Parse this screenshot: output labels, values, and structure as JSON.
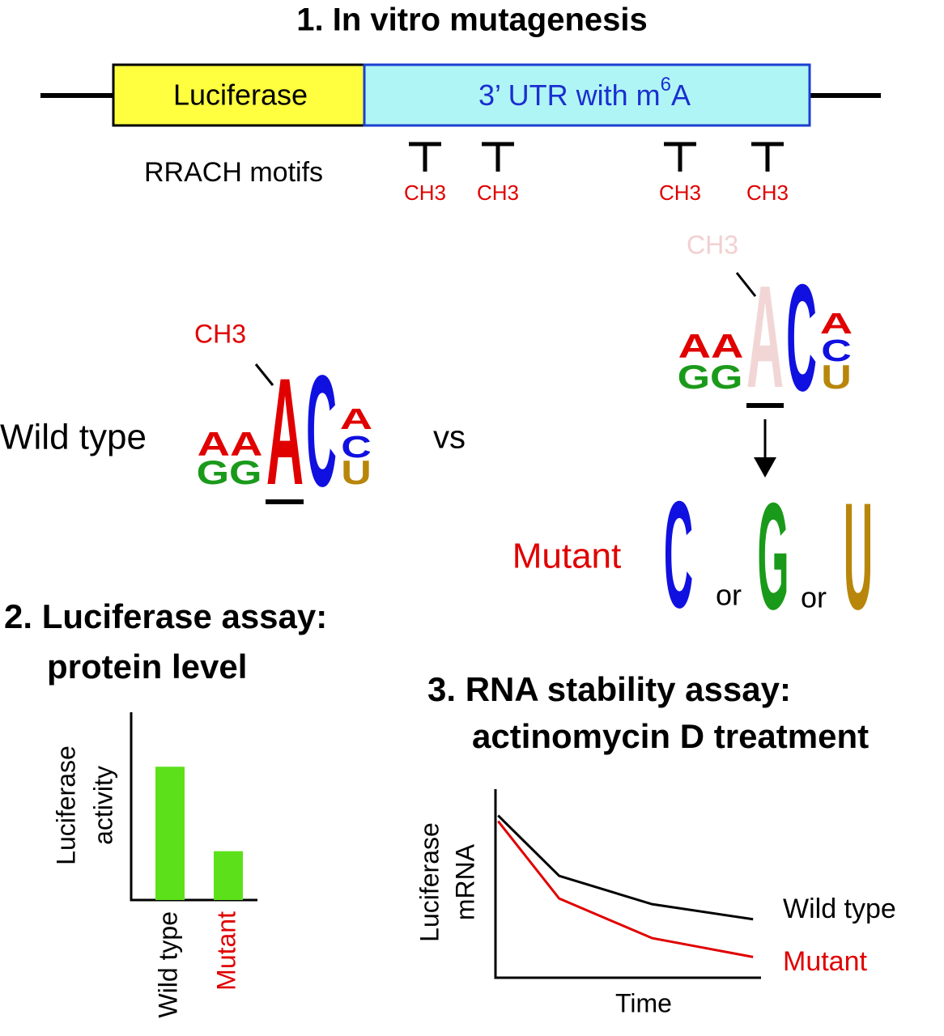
{
  "section1": {
    "title": "1. In vitro mutagenesis",
    "construct": {
      "gene": "Luciferase",
      "utr": "3’ UTR with m",
      "utr_superscript": "6",
      "utr_end": "A"
    },
    "motifs_label": "RRACH motifs",
    "methyl_marks": [
      "CH3",
      "CH3",
      "CH3",
      "CH3"
    ]
  },
  "comparison": {
    "wild_type_label": "Wild type",
    "vs": "vs",
    "wild_type_logo": {
      "methyl": "CH3",
      "left_top": "AA",
      "left_bottom": "GG",
      "center": "A",
      "next": "C",
      "right": [
        "A",
        "C",
        "U"
      ]
    },
    "mutant_logo": {
      "methyl": "CH3",
      "left_top": "AA",
      "left_bottom": "GG",
      "center": "A",
      "next": "C",
      "right": [
        "A",
        "C",
        "U"
      ]
    },
    "mutant_label": "Mutant",
    "substitutions": [
      "C",
      "G",
      "U"
    ],
    "or": [
      "or",
      "or"
    ]
  },
  "section2": {
    "title": [
      "2. Luciferase assay:",
      "protein level"
    ],
    "chart_data": {
      "type": "bar",
      "ylabel": [
        "Luciferase",
        "activity"
      ],
      "categories": [
        "Wild type",
        "Mutant"
      ],
      "category_colors": [
        "#000000",
        "#e00000"
      ],
      "values": [
        0.71,
        0.26
      ],
      "color": "#5ce01a",
      "ylim": [
        0,
        1
      ]
    }
  },
  "section3": {
    "title": [
      "3. RNA stability assay:",
      "actinomycin D treatment"
    ],
    "chart_data": {
      "type": "line",
      "ylabel": [
        "Luciferase",
        "mRNA"
      ],
      "xlabel": "Time",
      "xlim": [
        0,
        1
      ],
      "ylim": [
        0,
        1
      ],
      "series": [
        {
          "name": "Wild type",
          "color": "#000000",
          "x": [
            0.01,
            0.24,
            0.59,
            0.97
          ],
          "values": [
            0.86,
            0.54,
            0.39,
            0.31
          ]
        },
        {
          "name": "Mutant",
          "color": "#e00000",
          "x": [
            0.01,
            0.24,
            0.59,
            0.97
          ],
          "values": [
            0.83,
            0.42,
            0.21,
            0.11
          ]
        }
      ]
    }
  }
}
